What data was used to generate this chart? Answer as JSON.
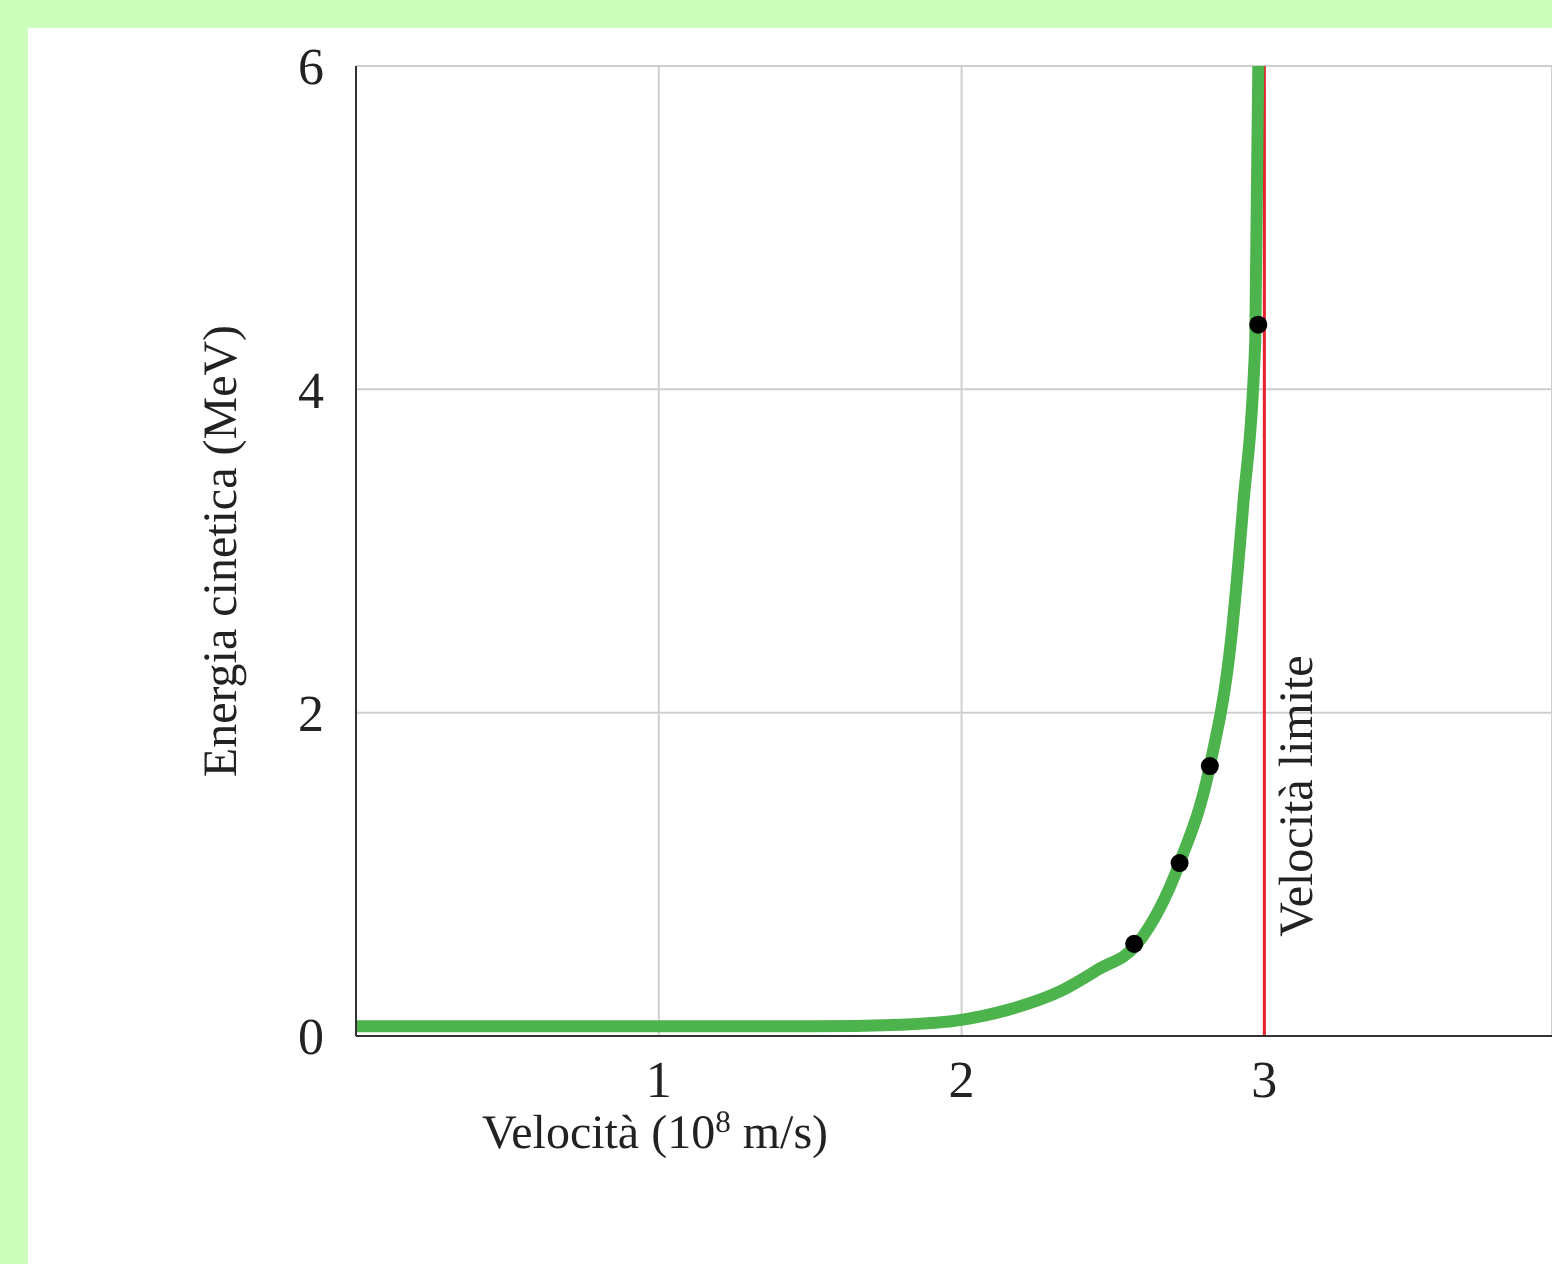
{
  "chart_data": {
    "type": "line",
    "xlabel": "Velocità (10$^{8}$ m/s)",
    "ylabel": "Energia cinetica (MeV)",
    "xlim": [
      0,
      3.95
    ],
    "xticks": [
      {
        "value": 0,
        "label": null
      },
      1,
      2,
      3
    ],
    "ylim": [
      0,
      6
    ],
    "yticks": [
      0,
      2,
      4,
      6
    ],
    "grid": true,
    "series": [
      {
        "type": "line",
        "color": "#4db34d",
        "marker": "none",
        "x": [
          0,
          0.5,
          1,
          1.5,
          1.8,
          2.0,
          2.15,
          2.33,
          2.45,
          2.58,
          2.72,
          2.82,
          2.89,
          2.93,
          2.97,
          2.98
        ],
        "values": [
          0.06,
          0.06,
          0.06,
          0.06,
          0.07,
          0.1,
          0.16,
          0.28,
          0.41,
          0.57,
          1.07,
          1.67,
          2.45,
          3.28,
          4.3,
          6
        ]
      },
      {
        "type": "scatter",
        "color": "#000000",
        "marker": "circle",
        "x": [
          2.57,
          2.72,
          2.82,
          2.98
        ],
        "values": [
          0.57,
          1.07,
          1.67,
          4.4
        ]
      }
    ],
    "ref_lines": [
      {
        "axis": "x",
        "value": 3,
        "label": "Velocità limite",
        "color": "#e8202a"
      }
    ]
  }
}
